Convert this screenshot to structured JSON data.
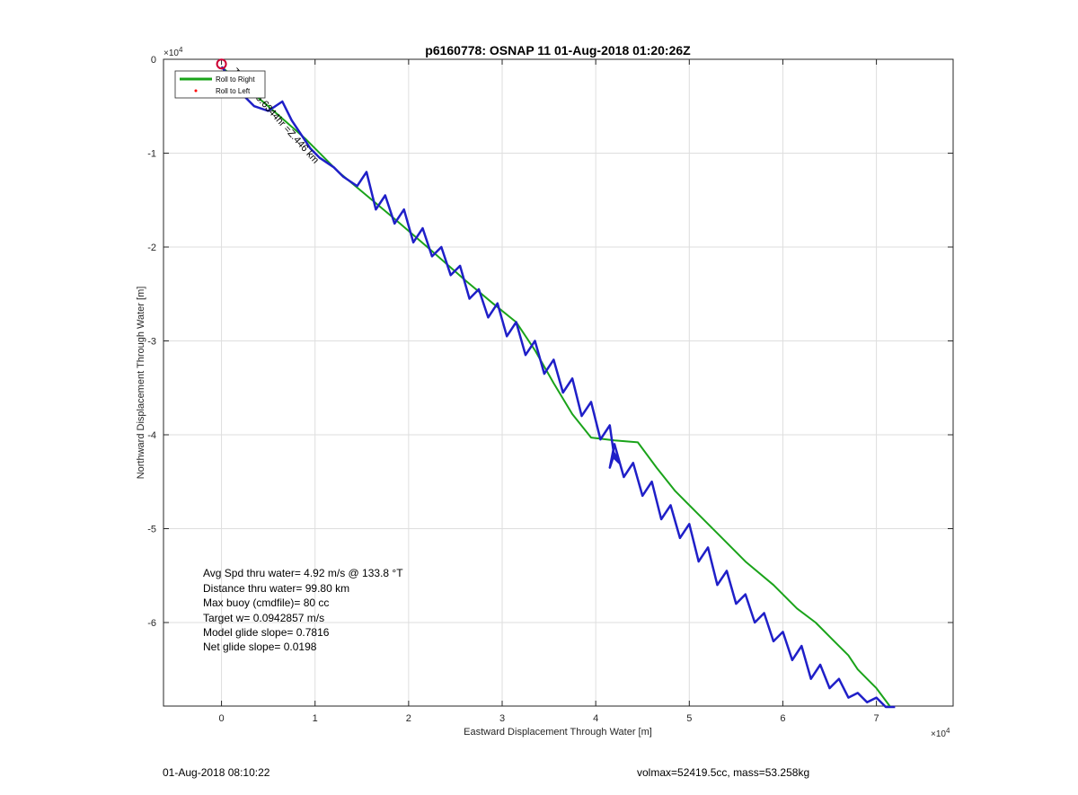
{
  "chart_data": {
    "type": "line",
    "title": "p6160778: OSNAP 11 01-Aug-2018 01:20:26Z",
    "xlabel": "Eastward Displacement Through Water [m]",
    "ylabel": "Northward Displacement Through Water [m]",
    "x_exponent": "×10^4",
    "y_exponent": "×10^4",
    "x_exponent_base": "×10",
    "x_exponent_power": "4",
    "y_exponent_base": "×10",
    "y_exponent_power": "4",
    "xlim": [
      -6200,
      78200
    ],
    "ylim": [
      -68900,
      0
    ],
    "xticks": [
      0,
      10000,
      20000,
      30000,
      40000,
      50000,
      60000,
      70000
    ],
    "xtick_labels": [
      "0",
      "1",
      "2",
      "3",
      "4",
      "5",
      "6",
      "7"
    ],
    "yticks": [
      0,
      -10000,
      -20000,
      -30000,
      -40000,
      -50000,
      -60000
    ],
    "ytick_labels": [
      "0",
      "-1",
      "-2",
      "-3",
      "-4",
      "-5",
      "-6"
    ],
    "grid": true,
    "legend": {
      "position": "top-left",
      "entries": [
        {
          "label": "Roll to Right",
          "color": "#1aa31a",
          "marker": "line"
        },
        {
          "label": "Roll to Left",
          "color": "#ff0000",
          "marker": "dot"
        }
      ]
    },
    "rotated_annotation": "Time to 5.6344hr =Z.446 km",
    "series": [
      {
        "color": "#1aa31a",
        "x": [
          0,
          2000,
          5000,
          9000,
          12500,
          15500,
          18500,
          22000,
          26000,
          29000,
          31500,
          33500,
          35500,
          37500,
          39500,
          42000,
          44500,
          46500,
          48500,
          51000,
          53500,
          56000,
          59000,
          61500,
          63500,
          65500,
          67000,
          68000,
          69000,
          70000,
          71500
        ],
        "y": [
          -800,
          -2500,
          -5000,
          -8500,
          -12000,
          -14500,
          -17000,
          -20000,
          -23500,
          -26000,
          -28000,
          -31000,
          -34500,
          -37800,
          -40300,
          -40600,
          -40800,
          -43500,
          -46000,
          -48500,
          -51000,
          -53500,
          -56000,
          -58500,
          -60000,
          -62000,
          -63500,
          -65000,
          -66000,
          -67000,
          -69000
        ]
      },
      {
        "color": "#1f1fc8",
        "x": [
          0,
          1000,
          2000,
          3500,
          5000,
          6500,
          7500,
          8500,
          9500,
          10500,
          12000,
          13000,
          14500,
          15500,
          16500,
          17500,
          18500,
          19500,
          20500,
          21500,
          22500,
          23500,
          24500,
          25500,
          26500,
          27500,
          28500,
          29500,
          30500,
          31500,
          32500,
          33500,
          34500,
          35500,
          36500,
          37500,
          38500,
          39500,
          40500,
          41500,
          42000,
          42500,
          42000,
          41500,
          42000,
          43000,
          44000,
          45000,
          46000,
          47000,
          48000,
          49000,
          50000,
          51000,
          52000,
          53000,
          54000,
          55000,
          56000,
          57000,
          58000,
          59000,
          60000,
          61000,
          62000,
          63000,
          64000,
          65000,
          66000,
          67000,
          68000,
          69000,
          70000,
          71000,
          72000
        ],
        "y": [
          -800,
          -2000,
          -3500,
          -5000,
          -5500,
          -4500,
          -6500,
          -8000,
          -9500,
          -10500,
          -11500,
          -12500,
          -13500,
          -12000,
          -16000,
          -14500,
          -17500,
          -16000,
          -19500,
          -18000,
          -21000,
          -20000,
          -23000,
          -22000,
          -25500,
          -24500,
          -27500,
          -26000,
          -29500,
          -28000,
          -31500,
          -30000,
          -33500,
          -32000,
          -35500,
          -34000,
          -38000,
          -36500,
          -40500,
          -39000,
          -42500,
          -43000,
          -42000,
          -43500,
          -41000,
          -44500,
          -43000,
          -46500,
          -45000,
          -49000,
          -47500,
          -51000,
          -49500,
          -53500,
          -52000,
          -56000,
          -54500,
          -58000,
          -57000,
          -60000,
          -59000,
          -62000,
          -61000,
          -64000,
          -62500,
          -66000,
          -64500,
          -67000,
          -66000,
          -68000,
          -67500,
          -68500,
          -68000,
          -69000,
          -69000
        ]
      }
    ],
    "start_marker": {
      "x": 0,
      "y": -500,
      "color": "#cc0033"
    },
    "textbox": [
      "Avg Spd thru water=  4.92 m/s @ 133.8 °T",
      "Distance thru water= 99.80 km",
      "Max buoy (cmdfile)= 80 cc",
      "Target w= 0.0942857 m/s",
      "Model glide slope= 0.7816",
      "Net glide slope= 0.0198"
    ]
  },
  "footer": {
    "left": "01-Aug-2018 08:10:22",
    "right": "volmax=52419.5cc, mass=53.258kg"
  }
}
